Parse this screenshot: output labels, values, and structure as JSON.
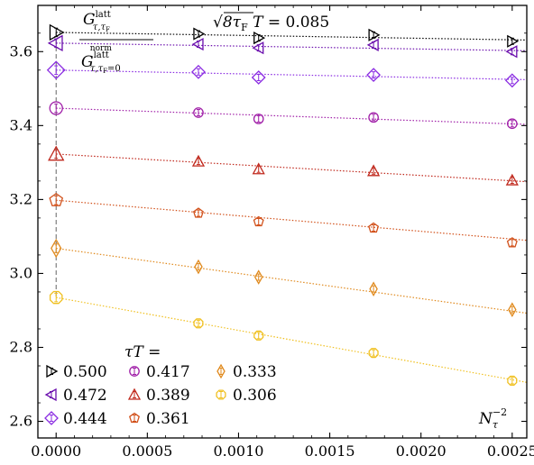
{
  "chart_data": {
    "type": "scatter",
    "title": "",
    "annotation_formula": "√(8τ_F) T = 0.085",
    "ylabel_numerator": "G^latt_{τ,τ_F}",
    "ylabel_denominator": "G^latt norm_{τ,τ_F=0}",
    "xlabel": "N_τ^-2",
    "legend_title": "τT =",
    "xlim": [
      -0.0001,
      0.00258
    ],
    "ylim": [
      2.555,
      3.725
    ],
    "xticks": [
      0.0,
      0.0005,
      0.001,
      0.0015,
      0.002,
      0.0025
    ],
    "xtick_labels": [
      "0.0000",
      "0.0005",
      "0.0010",
      "0.0015",
      "0.0020",
      "0.0025"
    ],
    "yticks": [
      2.6,
      2.8,
      3.0,
      3.2,
      3.4,
      3.6
    ],
    "ytick_labels": [
      "2.6",
      "2.8",
      "3.0",
      "3.2",
      "3.4",
      "3.6"
    ],
    "x": [
      0.0,
      0.00078,
      0.00111,
      0.00174,
      0.0025
    ],
    "series": [
      {
        "name": "0.500",
        "marker": "triangle-right",
        "color": "#000000",
        "values": [
          3.652,
          3.648,
          3.637,
          3.645,
          3.628
        ]
      },
      {
        "name": "0.472",
        "marker": "triangle-left",
        "color": "#6a0dad",
        "values": [
          3.623,
          3.62,
          3.61,
          3.618,
          3.6
        ]
      },
      {
        "name": "0.444",
        "marker": "diamond",
        "color": "#8a2be2",
        "values": [
          3.55,
          3.545,
          3.53,
          3.537,
          3.522
        ]
      },
      {
        "name": "0.417",
        "marker": "circle",
        "color": "#a01fa8",
        "values": [
          3.447,
          3.435,
          3.418,
          3.422,
          3.405
        ]
      },
      {
        "name": "0.389",
        "marker": "triangle-up",
        "color": "#c0281c",
        "values": [
          3.323,
          3.303,
          3.282,
          3.277,
          3.252
        ]
      },
      {
        "name": "0.361",
        "marker": "pentagon",
        "color": "#d2521c",
        "values": [
          3.198,
          3.163,
          3.14,
          3.123,
          3.083
        ]
      },
      {
        "name": "0.333",
        "marker": "thin-diamond",
        "color": "#e08a1e",
        "values": [
          3.068,
          3.018,
          2.99,
          2.958,
          2.902
        ]
      },
      {
        "name": "0.306",
        "marker": "octagon",
        "color": "#f0c020",
        "values": [
          2.935,
          2.865,
          2.832,
          2.785,
          2.71
        ]
      }
    ],
    "fits": [
      {
        "name": "0.500",
        "intercept": 3.652,
        "slope": -8
      },
      {
        "name": "0.472",
        "intercept": 3.623,
        "slope": -8
      },
      {
        "name": "0.444",
        "intercept": 3.55,
        "slope": -10
      },
      {
        "name": "0.417",
        "intercept": 3.447,
        "slope": -17
      },
      {
        "name": "0.389",
        "intercept": 3.323,
        "slope": -29
      },
      {
        "name": "0.361",
        "intercept": 3.198,
        "slope": -42
      },
      {
        "name": "0.333",
        "intercept": 3.068,
        "slope": -68
      },
      {
        "name": "0.306",
        "intercept": 2.935,
        "slope": -89
      }
    ],
    "vertical_reference_x": 0.0,
    "legend": {
      "placement": "bottom-left",
      "columns": 3
    },
    "grid": false
  }
}
